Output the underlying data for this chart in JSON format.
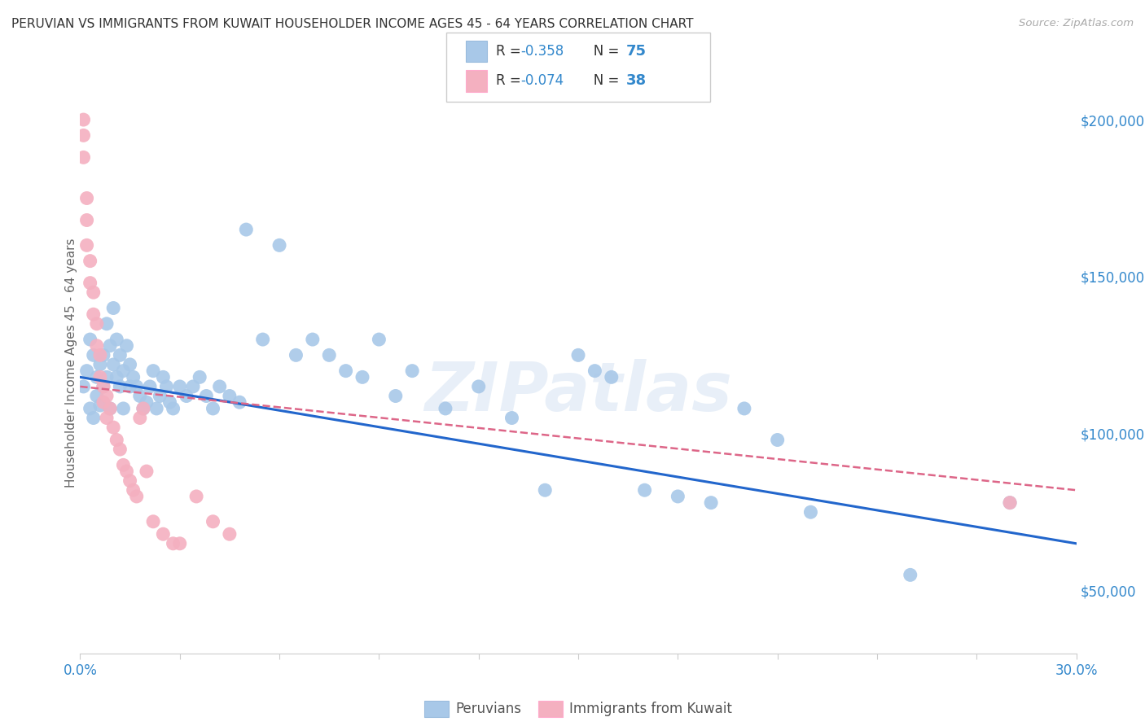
{
  "title": "PERUVIAN VS IMMIGRANTS FROM KUWAIT HOUSEHOLDER INCOME AGES 45 - 64 YEARS CORRELATION CHART",
  "source": "Source: ZipAtlas.com",
  "ylabel": "Householder Income Ages 45 - 64 years",
  "ytick_labels": [
    "$50,000",
    "$100,000",
    "$150,000",
    "$200,000"
  ],
  "ytick_values": [
    50000,
    100000,
    150000,
    200000
  ],
  "xlim": [
    0.0,
    0.3
  ],
  "ylim": [
    30000,
    215000
  ],
  "blue_color": "#a8c8e8",
  "pink_color": "#f4b0c0",
  "blue_line_color": "#2266cc",
  "pink_line_color": "#dd6688",
  "legend_R_blue": "-0.358",
  "legend_N_blue": "75",
  "legend_R_pink": "-0.074",
  "legend_N_pink": "38",
  "legend_label_blue": "Peruvians",
  "legend_label_pink": "Immigrants from Kuwait",
  "watermark": "ZIPatlas",
  "blue_scatter_x": [
    0.001,
    0.002,
    0.003,
    0.003,
    0.004,
    0.004,
    0.005,
    0.005,
    0.006,
    0.006,
    0.007,
    0.007,
    0.008,
    0.008,
    0.009,
    0.009,
    0.01,
    0.01,
    0.011,
    0.011,
    0.012,
    0.012,
    0.013,
    0.013,
    0.014,
    0.015,
    0.015,
    0.016,
    0.017,
    0.018,
    0.019,
    0.02,
    0.021,
    0.022,
    0.023,
    0.024,
    0.025,
    0.026,
    0.027,
    0.028,
    0.03,
    0.032,
    0.034,
    0.036,
    0.038,
    0.04,
    0.042,
    0.045,
    0.048,
    0.05,
    0.055,
    0.06,
    0.065,
    0.07,
    0.075,
    0.08,
    0.085,
    0.09,
    0.095,
    0.1,
    0.11,
    0.12,
    0.13,
    0.14,
    0.15,
    0.155,
    0.16,
    0.17,
    0.18,
    0.19,
    0.2,
    0.21,
    0.22,
    0.25,
    0.28
  ],
  "blue_scatter_y": [
    115000,
    120000,
    108000,
    130000,
    125000,
    105000,
    112000,
    118000,
    122000,
    109000,
    115000,
    125000,
    135000,
    118000,
    128000,
    108000,
    140000,
    122000,
    130000,
    118000,
    125000,
    115000,
    120000,
    108000,
    128000,
    122000,
    115000,
    118000,
    115000,
    112000,
    108000,
    110000,
    115000,
    120000,
    108000,
    112000,
    118000,
    115000,
    110000,
    108000,
    115000,
    112000,
    115000,
    118000,
    112000,
    108000,
    115000,
    112000,
    110000,
    165000,
    130000,
    160000,
    125000,
    130000,
    125000,
    120000,
    118000,
    130000,
    112000,
    120000,
    108000,
    115000,
    105000,
    82000,
    125000,
    120000,
    118000,
    82000,
    80000,
    78000,
    108000,
    98000,
    75000,
    55000,
    78000
  ],
  "pink_scatter_x": [
    0.001,
    0.001,
    0.001,
    0.002,
    0.002,
    0.002,
    0.003,
    0.003,
    0.004,
    0.004,
    0.005,
    0.005,
    0.006,
    0.006,
    0.007,
    0.007,
    0.008,
    0.008,
    0.009,
    0.01,
    0.011,
    0.012,
    0.013,
    0.014,
    0.015,
    0.016,
    0.017,
    0.018,
    0.019,
    0.02,
    0.022,
    0.025,
    0.028,
    0.03,
    0.035,
    0.04,
    0.045,
    0.28
  ],
  "pink_scatter_y": [
    200000,
    195000,
    188000,
    175000,
    168000,
    160000,
    155000,
    148000,
    145000,
    138000,
    135000,
    128000,
    125000,
    118000,
    115000,
    110000,
    112000,
    105000,
    108000,
    102000,
    98000,
    95000,
    90000,
    88000,
    85000,
    82000,
    80000,
    105000,
    108000,
    88000,
    72000,
    68000,
    65000,
    65000,
    80000,
    72000,
    68000,
    78000
  ],
  "blue_trend_x": [
    0.0,
    0.3
  ],
  "blue_trend_y": [
    118000,
    65000
  ],
  "pink_trend_x": [
    0.0,
    0.3
  ],
  "pink_trend_y": [
    115000,
    82000
  ]
}
